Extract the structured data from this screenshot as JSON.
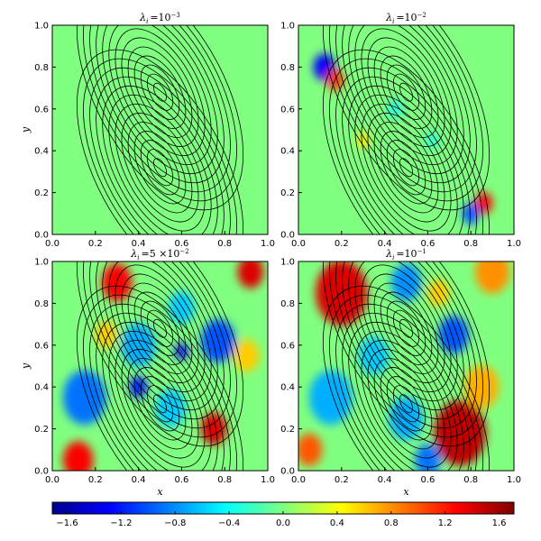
{
  "chart_data": [
    {
      "type": "contour",
      "title": {
        "symbol": "λ",
        "subscript": "i",
        "value": "=10",
        "exponent": "−3"
      },
      "xlim": [
        0,
        1
      ],
      "ylim": [
        0,
        1
      ],
      "xticks": [
        {
          "value": 0,
          "label": "0.0"
        },
        0.2,
        0.4,
        0.6,
        0.8,
        {
          "value": 1,
          "label": "1.0"
        }
      ],
      "yticks": [
        {
          "value": 0,
          "label": "0.0"
        },
        0.2,
        0.4,
        0.6,
        0.8,
        {
          "value": 1,
          "label": "1.0"
        }
      ],
      "ylabel": "y"
    },
    {
      "type": "contour",
      "title": {
        "symbol": "λ",
        "subscript": "i",
        "value": "=10",
        "exponent": "−2"
      },
      "xlim": [
        0,
        1
      ],
      "ylim": [
        0,
        1
      ],
      "xticks": [
        {
          "value": 0,
          "label": "0.0"
        },
        0.2,
        0.4,
        0.6,
        0.8,
        {
          "value": 1,
          "label": "1.0"
        }
      ],
      "yticks": [
        {
          "value": 0,
          "label": "0.0"
        },
        0.2,
        0.4,
        0.6,
        0.8,
        {
          "value": 1,
          "label": "1.0"
        }
      ]
    },
    {
      "type": "contour",
      "title": {
        "symbol": "λ",
        "subscript": "i",
        "value": "=5 ×10",
        "exponent": "−2"
      },
      "xlim": [
        0,
        1
      ],
      "ylim": [
        0,
        1
      ],
      "xticks": [
        {
          "value": 0,
          "label": "0.0"
        },
        0.2,
        0.4,
        0.6,
        0.8,
        {
          "value": 1,
          "label": "1.0"
        }
      ],
      "yticks": [
        {
          "value": 0,
          "label": "0.0"
        },
        0.2,
        0.4,
        0.6,
        0.8,
        {
          "value": 1,
          "label": "1.0"
        }
      ],
      "xlabel": "x",
      "ylabel": "y"
    },
    {
      "type": "contour",
      "title": {
        "symbol": "λ",
        "subscript": "i",
        "value": "=10",
        "exponent": "−1"
      },
      "xlim": [
        0,
        1
      ],
      "ylim": [
        0,
        1
      ],
      "xticks": [
        {
          "value": 0,
          "label": "0.0"
        },
        0.2,
        0.4,
        0.6,
        0.8,
        {
          "value": 1,
          "label": "1.0"
        }
      ],
      "yticks": [
        {
          "value": 0,
          "label": "0.0"
        },
        0.2,
        0.4,
        0.6,
        0.8,
        {
          "value": 1,
          "label": "1.0"
        }
      ],
      "xlabel": "x"
    },
    {
      "type": "colorbar",
      "clim": [
        -1.71,
        1.71
      ],
      "ticks": [
        {
          "value": -1.6,
          "label": "−1.6"
        },
        {
          "value": -1.2,
          "label": "−1.2"
        },
        {
          "value": -0.8,
          "label": "−0.8"
        },
        {
          "value": -0.4,
          "label": "−0.4"
        },
        {
          "value": 0,
          "label": "0.0"
        },
        0.4,
        0.8,
        1.2,
        1.6
      ]
    }
  ]
}
